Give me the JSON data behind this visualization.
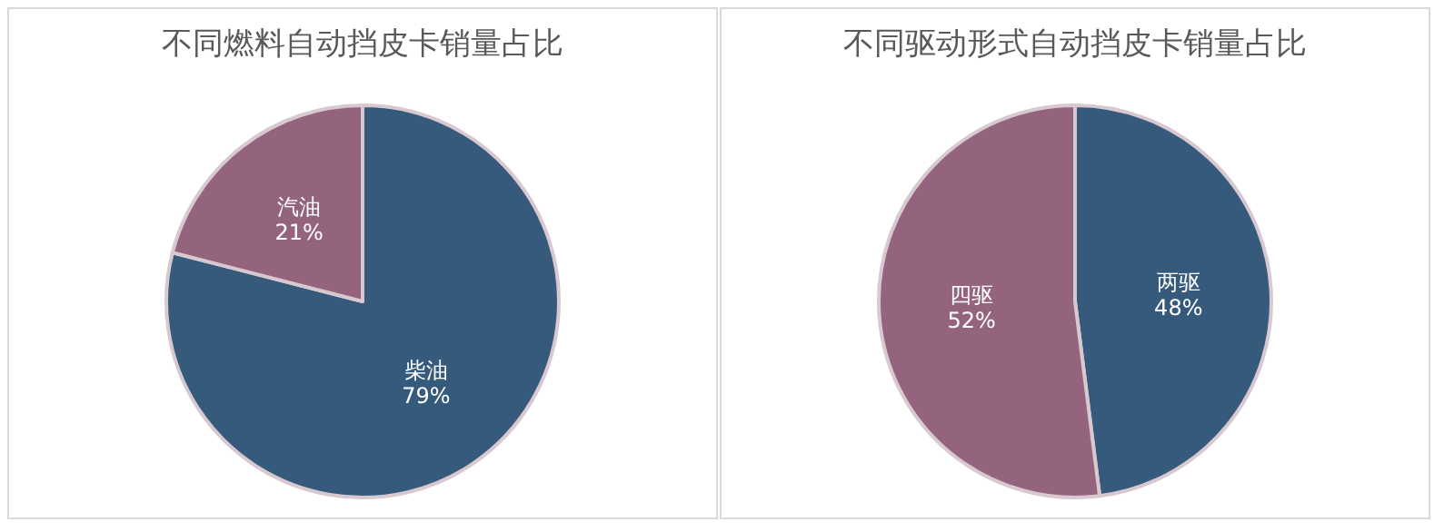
{
  "chart_data": [
    {
      "type": "pie",
      "title": "不同燃料自动挡皮卡销量占比",
      "categories": [
        "柴油",
        "汽油"
      ],
      "values": [
        79,
        21
      ],
      "colors": [
        "#355a7c",
        "#94647e"
      ],
      "value_labels": [
        "79%",
        "21%"
      ]
    },
    {
      "type": "pie",
      "title": "不同驱动形式自动挡皮卡销量占比",
      "categories": [
        "两驱",
        "四驱"
      ],
      "values": [
        48,
        52
      ],
      "colors": [
        "#355a7c",
        "#94647e"
      ],
      "value_labels": [
        "48%",
        "52%"
      ]
    }
  ]
}
